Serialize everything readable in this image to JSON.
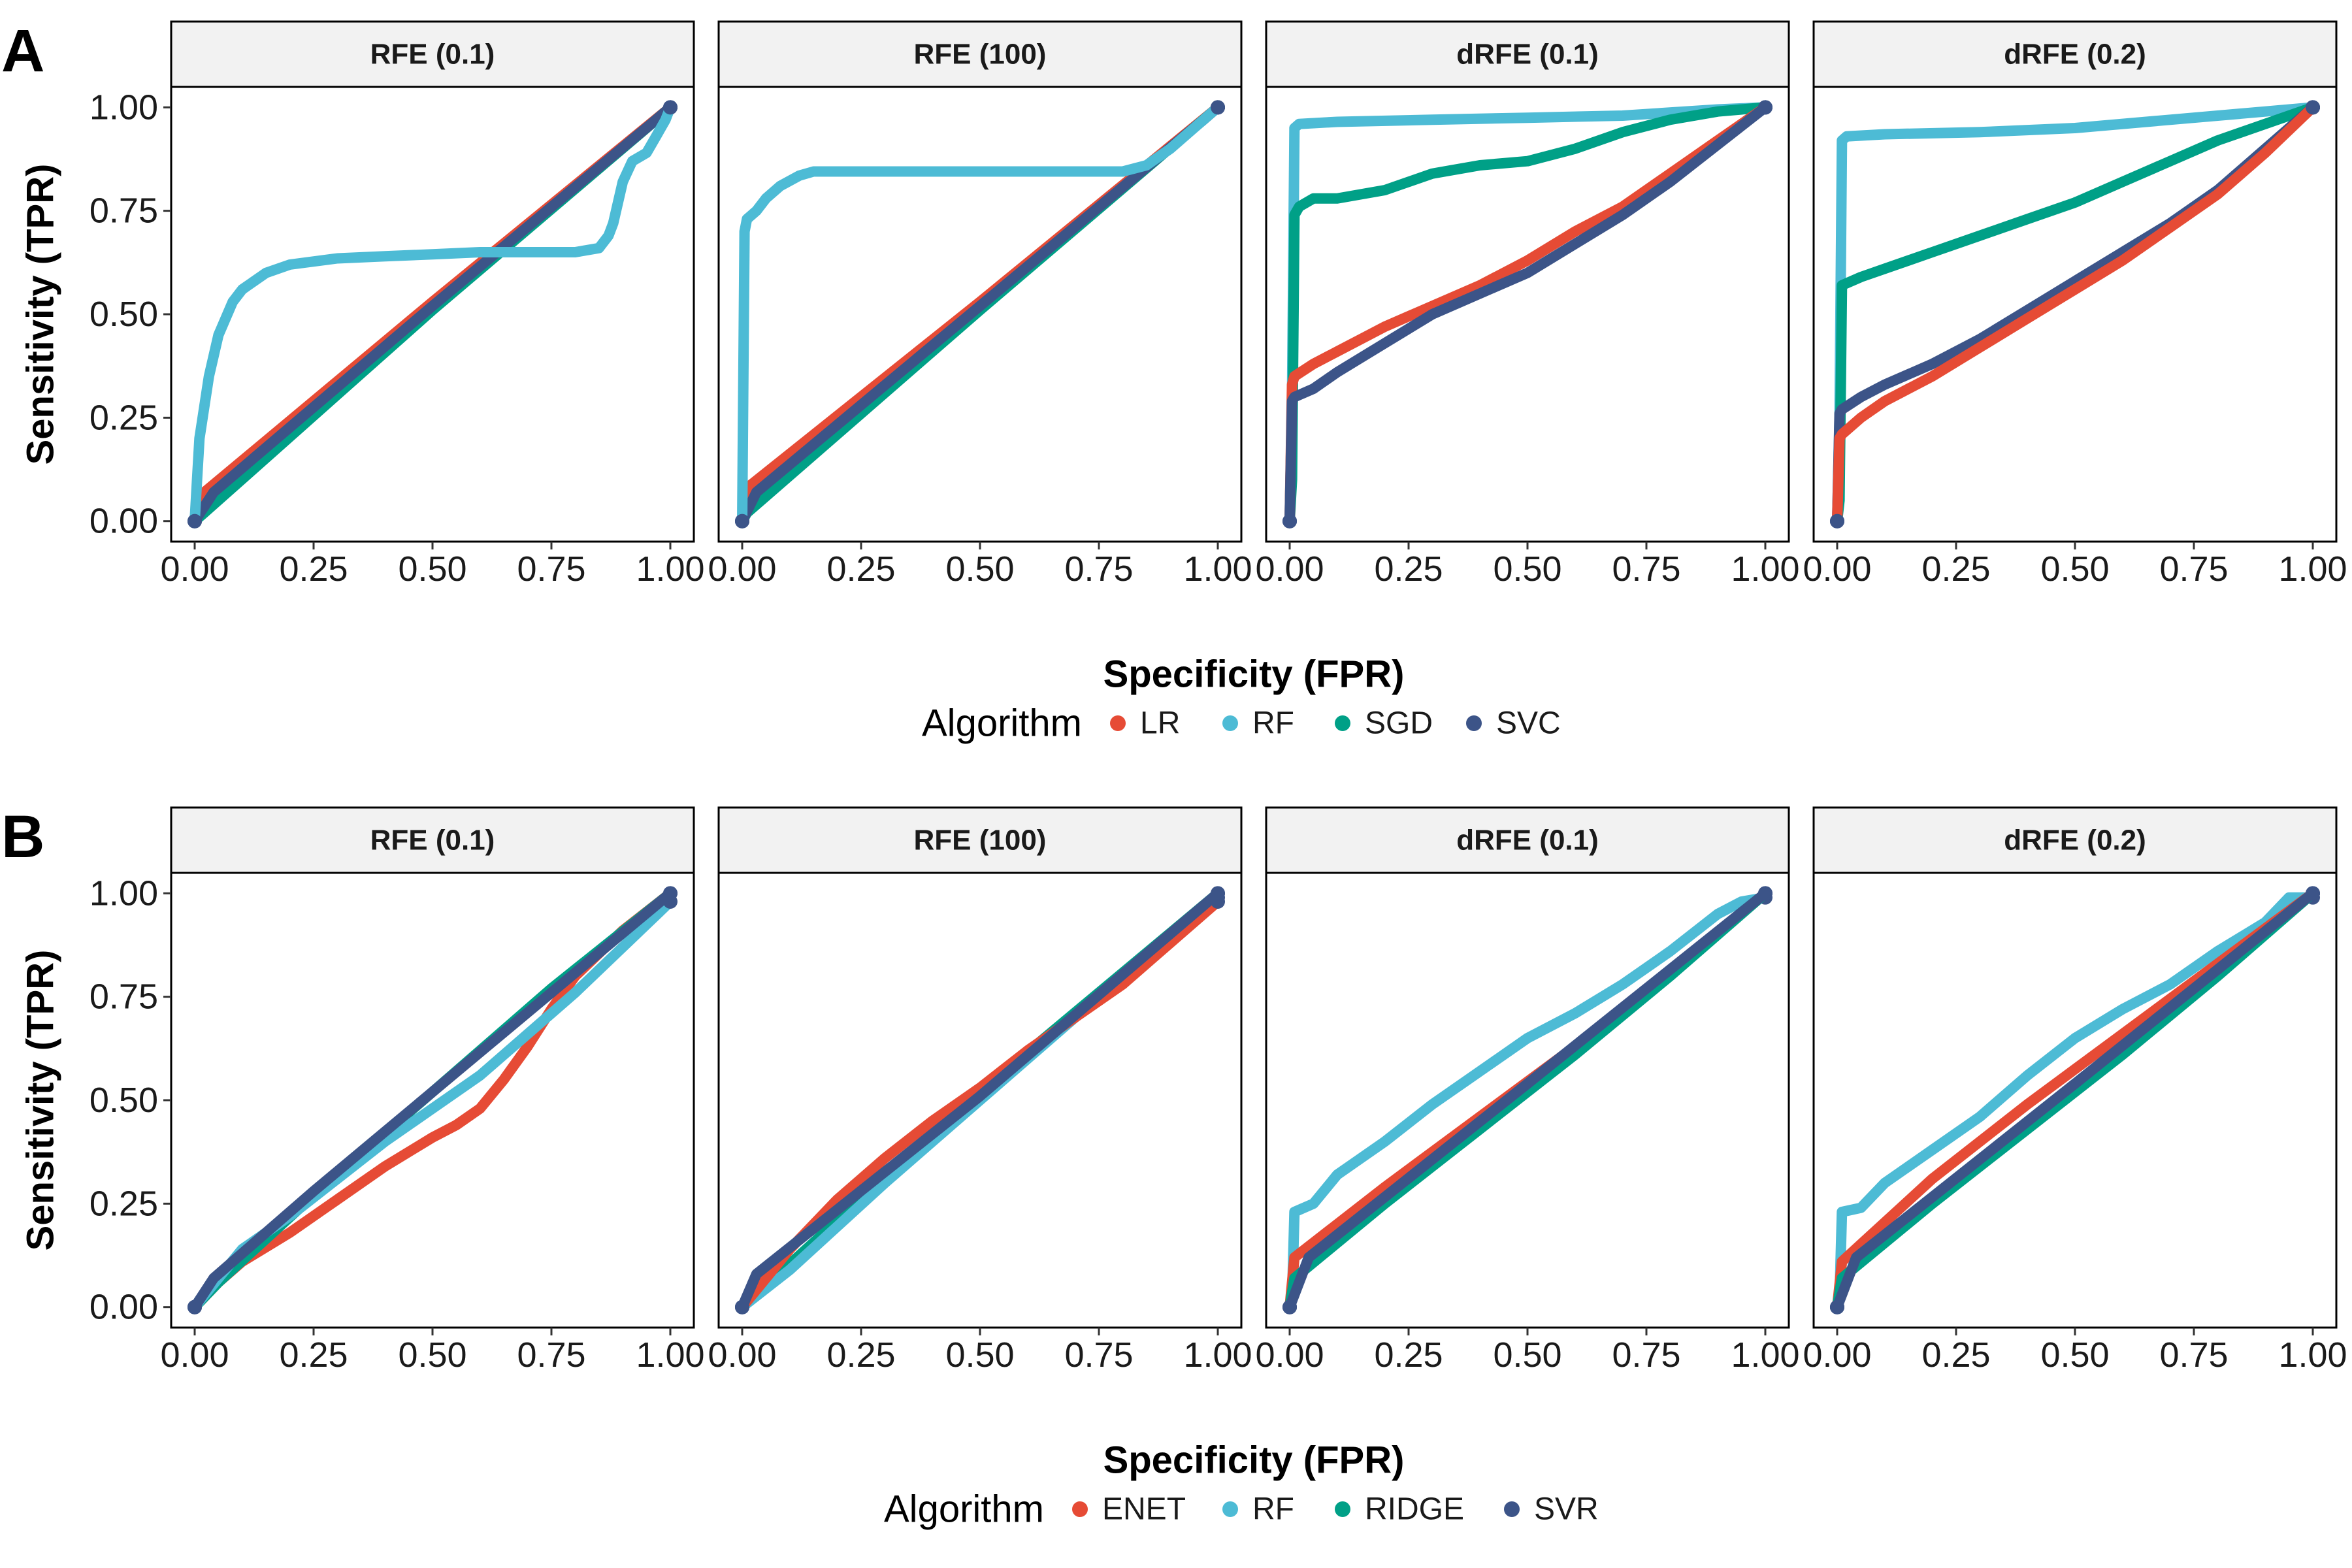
{
  "chart_data": [
    {
      "type": "line",
      "panel_label": "A",
      "xlabel": "Specificity (FPR)",
      "ylabel": "Sensitivity (TPR)",
      "xlim": [
        0,
        1
      ],
      "ylim": [
        0,
        1
      ],
      "x_ticks": [
        "0.00",
        "0.25",
        "0.50",
        "0.75",
        "1.00"
      ],
      "y_ticks": [
        "0.00",
        "0.25",
        "0.50",
        "0.75",
        "1.00"
      ],
      "legend": {
        "title": "Algorithm",
        "position": "bottom",
        "entries": [
          "LR",
          "RF",
          "SGD",
          "SVC"
        ]
      },
      "colors": {
        "LR": "#E64B35",
        "RF": "#4DBBD5",
        "SGD": "#00A087",
        "SVC": "#3C5488"
      },
      "facets": [
        {
          "title": "RFE (0.1)",
          "series": [
            {
              "name": "LR",
              "x": [
                0,
                0.01,
                0.5,
                1.0
              ],
              "y": [
                0,
                0.06,
                0.53,
                1.0
              ]
            },
            {
              "name": "SGD",
              "x": [
                0,
                0.02,
                0.5,
                0.95,
                1.0
              ],
              "y": [
                0,
                0.02,
                0.51,
                0.95,
                1.0
              ]
            },
            {
              "name": "SVC",
              "x": [
                0,
                0.04,
                0.5,
                0.97,
                1.0
              ],
              "y": [
                0,
                0.07,
                0.52,
                0.97,
                1.0
              ]
            },
            {
              "name": "RF",
              "x": [
                0,
                0.005,
                0.01,
                0.03,
                0.05,
                0.08,
                0.1,
                0.15,
                0.2,
                0.3,
                0.4,
                0.5,
                0.6,
                0.7,
                0.8,
                0.85,
                0.87,
                0.88,
                0.9,
                0.92,
                0.95,
                0.97,
                0.99,
                1.0
              ],
              "y": [
                0,
                0.1,
                0.2,
                0.35,
                0.45,
                0.53,
                0.56,
                0.6,
                0.62,
                0.635,
                0.64,
                0.645,
                0.65,
                0.65,
                0.65,
                0.66,
                0.69,
                0.72,
                0.82,
                0.87,
                0.89,
                0.93,
                0.97,
                1.0
              ]
            }
          ]
        },
        {
          "title": "RFE (100)",
          "series": [
            {
              "name": "LR",
              "x": [
                0,
                0.01,
                0.5,
                1.0
              ],
              "y": [
                0,
                0.08,
                0.53,
                1.0
              ]
            },
            {
              "name": "SGD",
              "x": [
                0,
                0.01,
                0.5,
                1.0
              ],
              "y": [
                0,
                0.02,
                0.51,
                1.0
              ]
            },
            {
              "name": "SVC",
              "x": [
                0,
                0.03,
                0.5,
                0.97,
                1.0
              ],
              "y": [
                0,
                0.07,
                0.52,
                0.97,
                1.0
              ]
            },
            {
              "name": "RF",
              "x": [
                0,
                0.005,
                0.01,
                0.03,
                0.05,
                0.08,
                0.12,
                0.15,
                0.3,
                0.5,
                0.7,
                0.8,
                0.85,
                0.9,
                0.95,
                1.0
              ],
              "y": [
                0,
                0.7,
                0.73,
                0.75,
                0.78,
                0.81,
                0.835,
                0.845,
                0.845,
                0.845,
                0.845,
                0.845,
                0.86,
                0.9,
                0.95,
                1.0
              ]
            }
          ]
        },
        {
          "title": "dRFE (0.1)",
          "series": [
            {
              "name": "RF",
              "x": [
                0,
                0.005,
                0.01,
                0.02,
                0.1,
                0.3,
                0.5,
                0.7,
                0.9,
                1.0
              ],
              "y": [
                0,
                0.3,
                0.95,
                0.96,
                0.965,
                0.97,
                0.975,
                0.98,
                0.995,
                1.0
              ]
            },
            {
              "name": "SGD",
              "x": [
                0,
                0.005,
                0.01,
                0.02,
                0.05,
                0.1,
                0.2,
                0.3,
                0.4,
                0.5,
                0.6,
                0.7,
                0.8,
                0.9,
                1.0
              ],
              "y": [
                0,
                0.1,
                0.74,
                0.76,
                0.78,
                0.78,
                0.8,
                0.84,
                0.86,
                0.87,
                0.9,
                0.94,
                0.97,
                0.99,
                1.0
              ]
            },
            {
              "name": "LR",
              "x": [
                0,
                0.005,
                0.01,
                0.05,
                0.1,
                0.2,
                0.3,
                0.4,
                0.5,
                0.6,
                0.7,
                0.8,
                0.9,
                1.0
              ],
              "y": [
                0,
                0.33,
                0.35,
                0.38,
                0.41,
                0.47,
                0.52,
                0.57,
                0.63,
                0.7,
                0.76,
                0.84,
                0.92,
                1.0
              ]
            },
            {
              "name": "SVC",
              "x": [
                0,
                0.005,
                0.01,
                0.05,
                0.1,
                0.2,
                0.3,
                0.4,
                0.5,
                0.6,
                0.7,
                0.8,
                0.9,
                1.0
              ],
              "y": [
                0,
                0.29,
                0.3,
                0.32,
                0.36,
                0.43,
                0.5,
                0.55,
                0.6,
                0.67,
                0.74,
                0.82,
                0.91,
                1.0
              ]
            }
          ]
        },
        {
          "title": "dRFE (0.2)",
          "series": [
            {
              "name": "RF",
              "x": [
                0,
                0.005,
                0.01,
                0.02,
                0.1,
                0.3,
                0.5,
                0.7,
                0.9,
                1.0
              ],
              "y": [
                0,
                0.25,
                0.92,
                0.93,
                0.935,
                0.94,
                0.95,
                0.97,
                0.99,
                1.0
              ]
            },
            {
              "name": "SGD",
              "x": [
                0,
                0.005,
                0.01,
                0.05,
                0.1,
                0.2,
                0.3,
                0.4,
                0.5,
                0.6,
                0.7,
                0.8,
                0.9,
                1.0
              ],
              "y": [
                0,
                0.05,
                0.57,
                0.59,
                0.61,
                0.65,
                0.69,
                0.73,
                0.77,
                0.82,
                0.87,
                0.92,
                0.96,
                1.0
              ]
            },
            {
              "name": "SVC",
              "x": [
                0,
                0.005,
                0.01,
                0.05,
                0.1,
                0.2,
                0.3,
                0.4,
                0.5,
                0.6,
                0.7,
                0.8,
                0.9,
                1.0
              ],
              "y": [
                0,
                0.26,
                0.27,
                0.3,
                0.33,
                0.38,
                0.44,
                0.51,
                0.58,
                0.65,
                0.72,
                0.8,
                0.9,
                1.0
              ]
            },
            {
              "name": "LR",
              "x": [
                0,
                0.005,
                0.01,
                0.05,
                0.1,
                0.2,
                0.3,
                0.4,
                0.5,
                0.6,
                0.7,
                0.8,
                0.9,
                1.0
              ],
              "y": [
                0,
                0.2,
                0.21,
                0.25,
                0.29,
                0.35,
                0.42,
                0.49,
                0.56,
                0.63,
                0.71,
                0.79,
                0.89,
                1.0
              ]
            }
          ]
        }
      ]
    },
    {
      "type": "line",
      "panel_label": "B",
      "xlabel": "Specificity (FPR)",
      "ylabel": "Sensitivity (TPR)",
      "xlim": [
        0,
        1
      ],
      "ylim": [
        0,
        1
      ],
      "x_ticks": [
        "0.00",
        "0.25",
        "0.50",
        "0.75",
        "1.00"
      ],
      "y_ticks": [
        "0.00",
        "0.25",
        "0.50",
        "0.75",
        "1.00"
      ],
      "legend": {
        "title": "Algorithm",
        "position": "bottom",
        "entries": [
          "ENET",
          "RF",
          "RIDGE",
          "SVR"
        ]
      },
      "colors": {
        "ENET": "#E64B35",
        "RF": "#4DBBD5",
        "RIDGE": "#00A087",
        "SVR": "#3C5488"
      },
      "facets": [
        {
          "title": "RFE (0.1)",
          "series": [
            {
              "name": "ENET",
              "x": [
                0,
                0.05,
                0.1,
                0.2,
                0.3,
                0.4,
                0.5,
                0.55,
                0.6,
                0.65,
                0.7,
                0.75,
                0.8,
                0.9,
                1.0
              ],
              "y": [
                0,
                0.06,
                0.11,
                0.18,
                0.26,
                0.34,
                0.41,
                0.44,
                0.48,
                0.55,
                0.63,
                0.72,
                0.8,
                0.91,
                1.0
              ]
            },
            {
              "name": "RIDGE",
              "x": [
                0,
                0.05,
                0.25,
                0.5,
                0.75,
                1.0
              ],
              "y": [
                0,
                0.06,
                0.27,
                0.52,
                0.77,
                1.0
              ]
            },
            {
              "name": "RF",
              "x": [
                0,
                0.05,
                0.1,
                0.2,
                0.3,
                0.4,
                0.5,
                0.6,
                0.7,
                0.8,
                0.9,
                1.0
              ],
              "y": [
                0,
                0.07,
                0.14,
                0.22,
                0.31,
                0.4,
                0.48,
                0.56,
                0.66,
                0.76,
                0.87,
                0.98
              ]
            },
            {
              "name": "SVR",
              "x": [
                0,
                0.04,
                0.25,
                0.5,
                0.75,
                1.0
              ],
              "y": [
                0,
                0.07,
                0.28,
                0.52,
                0.76,
                1.0
              ]
            }
          ]
        },
        {
          "title": "RFE (100)",
          "series": [
            {
              "name": "RIDGE",
              "x": [
                0,
                0.5,
                1.0
              ],
              "y": [
                0,
                0.52,
                1.0
              ]
            },
            {
              "name": "RF",
              "x": [
                0,
                0.1,
                0.3,
                0.5,
                0.7,
                0.9,
                1.0
              ],
              "y": [
                0,
                0.09,
                0.3,
                0.5,
                0.7,
                0.9,
                0.99
              ]
            },
            {
              "name": "ENET",
              "x": [
                0,
                0.1,
                0.2,
                0.3,
                0.4,
                0.5,
                0.6,
                0.7,
                0.8,
                0.9,
                1.0
              ],
              "y": [
                0,
                0.14,
                0.26,
                0.36,
                0.45,
                0.53,
                0.62,
                0.7,
                0.78,
                0.88,
                0.98
              ]
            },
            {
              "name": "SVR",
              "x": [
                0,
                0.03,
                0.5,
                1.0
              ],
              "y": [
                0,
                0.08,
                0.51,
                1.0
              ]
            }
          ]
        },
        {
          "title": "dRFE (0.1)",
          "series": [
            {
              "name": "RF",
              "x": [
                0,
                0.005,
                0.01,
                0.05,
                0.1,
                0.2,
                0.3,
                0.4,
                0.5,
                0.6,
                0.7,
                0.8,
                0.9,
                0.95,
                1.0
              ],
              "y": [
                0,
                0.02,
                0.23,
                0.25,
                0.32,
                0.4,
                0.49,
                0.57,
                0.65,
                0.71,
                0.78,
                0.86,
                0.95,
                0.98,
                0.99
              ]
            },
            {
              "name": "ENET",
              "x": [
                0,
                0.01,
                0.2,
                0.4,
                0.6,
                0.8,
                1.0
              ],
              "y": [
                0,
                0.12,
                0.29,
                0.46,
                0.63,
                0.81,
                1.0
              ]
            },
            {
              "name": "RIDGE",
              "x": [
                0,
                0.01,
                0.2,
                0.4,
                0.6,
                0.8,
                1.0
              ],
              "y": [
                0,
                0.07,
                0.25,
                0.43,
                0.61,
                0.8,
                1.0
              ]
            },
            {
              "name": "SVR",
              "x": [
                0,
                0.04,
                0.5,
                1.0
              ],
              "y": [
                0,
                0.12,
                0.54,
                1.0
              ]
            }
          ]
        },
        {
          "title": "dRFE (0.2)",
          "series": [
            {
              "name": "RF",
              "x": [
                0,
                0.005,
                0.01,
                0.05,
                0.1,
                0.2,
                0.3,
                0.4,
                0.5,
                0.6,
                0.7,
                0.8,
                0.9,
                0.95,
                1.0
              ],
              "y": [
                0,
                0.02,
                0.23,
                0.24,
                0.3,
                0.38,
                0.46,
                0.56,
                0.65,
                0.72,
                0.78,
                0.86,
                0.93,
                0.99,
                0.99
              ]
            },
            {
              "name": "ENET",
              "x": [
                0,
                0.01,
                0.2,
                0.4,
                0.6,
                0.8,
                1.0
              ],
              "y": [
                0,
                0.11,
                0.31,
                0.49,
                0.66,
                0.83,
                1.0
              ]
            },
            {
              "name": "RIDGE",
              "x": [
                0,
                0.01,
                0.2,
                0.4,
                0.6,
                0.8,
                1.0
              ],
              "y": [
                0,
                0.07,
                0.25,
                0.43,
                0.61,
                0.8,
                1.0
              ]
            },
            {
              "name": "SVR",
              "x": [
                0,
                0.04,
                0.5,
                1.0
              ],
              "y": [
                0,
                0.12,
                0.54,
                1.0
              ]
            }
          ]
        }
      ]
    }
  ]
}
